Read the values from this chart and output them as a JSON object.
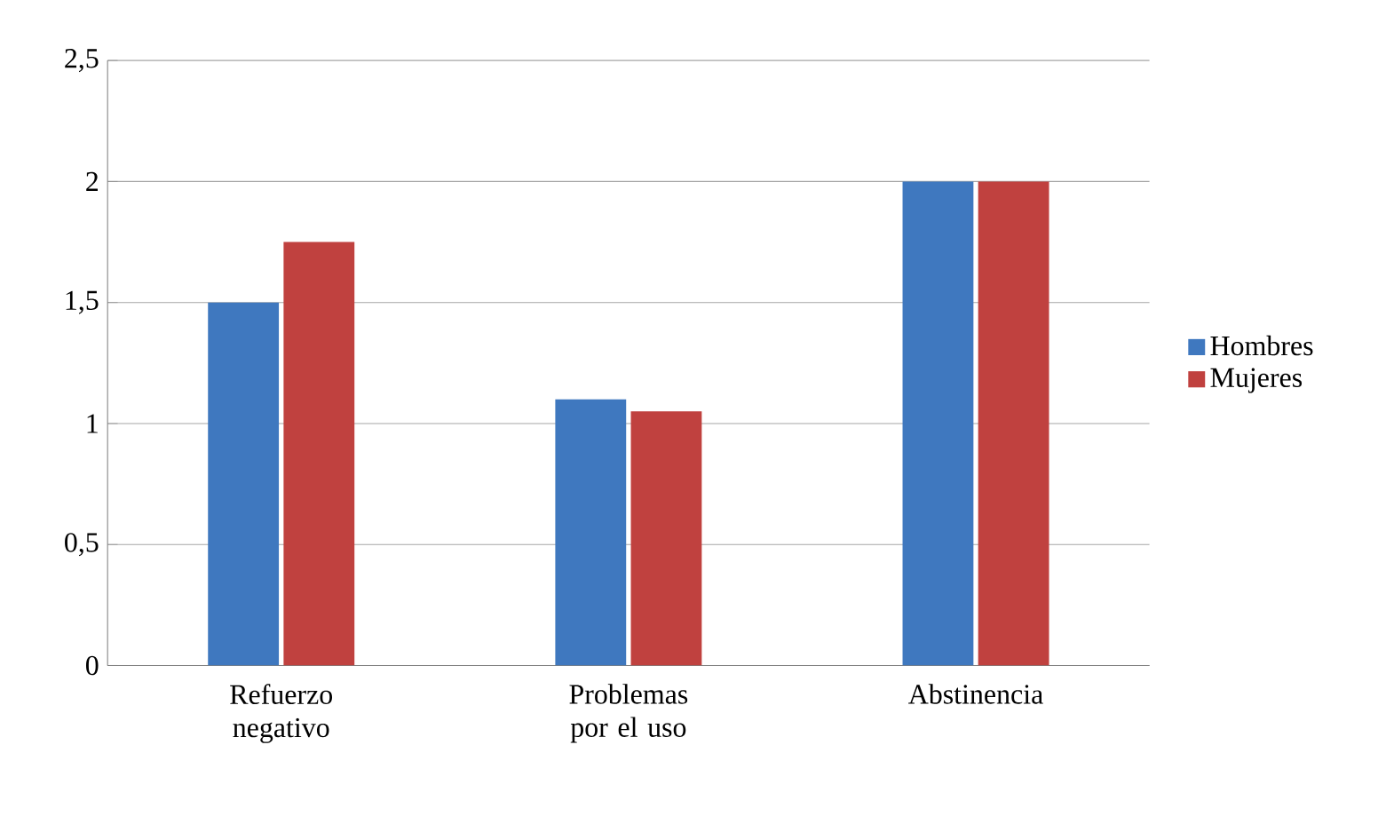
{
  "chart_data": {
    "type": "bar",
    "categories": [
      "Refuerzo negativo",
      "Problemas por el uso",
      "Abstinencia"
    ],
    "series": [
      {
        "name": "Hombres",
        "color": "#3f78bf",
        "values": [
          1.5,
          1.1,
          2.0
        ]
      },
      {
        "name": "Mujeres",
        "color": "#c0413f",
        "values": [
          1.75,
          1.05,
          2.0
        ]
      }
    ],
    "ylim": [
      0,
      2.5
    ],
    "yticks": [
      0,
      {
        "value": 0.5,
        "label": "0,5"
      },
      1,
      {
        "value": 1.5,
        "label": "1,5"
      },
      2,
      {
        "value": 2.5,
        "label": "2,5"
      }
    ],
    "grid": "y",
    "legend": "right"
  }
}
